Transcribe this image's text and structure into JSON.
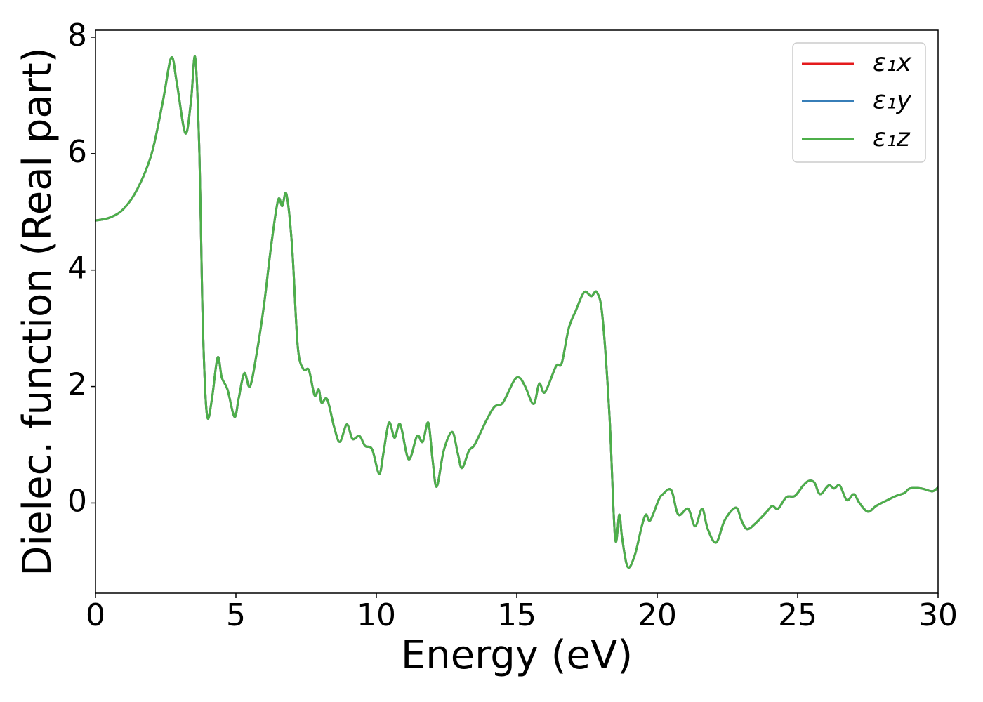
{
  "chart_data": {
    "type": "line",
    "xlabel": "Energy (eV)",
    "ylabel": "Dielec. function (Real part)",
    "x": [
      0,
      0.5,
      1.0,
      1.5,
      2.0,
      2.4,
      2.7,
      2.9,
      3.2,
      3.4,
      3.55,
      3.7,
      3.8,
      3.9,
      4.0,
      4.15,
      4.35,
      4.5,
      4.7,
      4.95,
      5.1,
      5.3,
      5.5,
      5.75,
      6.0,
      6.25,
      6.5,
      6.65,
      6.8,
      7.0,
      7.2,
      7.4,
      7.6,
      7.8,
      7.95,
      8.05,
      8.25,
      8.5,
      8.7,
      8.95,
      9.15,
      9.4,
      9.6,
      9.85,
      10.1,
      10.25,
      10.45,
      10.65,
      10.85,
      11.15,
      11.45,
      11.65,
      11.85,
      12.0,
      12.15,
      12.4,
      12.7,
      12.9,
      13.05,
      13.3,
      13.5,
      13.9,
      14.2,
      14.5,
      14.9,
      15.1,
      15.3,
      15.6,
      15.8,
      16.0,
      16.4,
      16.6,
      16.85,
      17.1,
      17.4,
      17.65,
      17.85,
      18.05,
      18.3,
      18.5,
      18.65,
      18.75,
      18.95,
      19.2,
      19.45,
      19.6,
      19.75,
      20.05,
      20.2,
      20.5,
      20.75,
      21.1,
      21.35,
      21.6,
      21.8,
      22.1,
      22.4,
      22.8,
      23.0,
      23.2,
      23.5,
      23.9,
      24.1,
      24.3,
      24.6,
      24.9,
      25.2,
      25.4,
      25.6,
      25.8,
      26.1,
      26.3,
      26.5,
      26.75,
      27.0,
      27.2,
      27.5,
      27.8,
      28.2,
      28.5,
      28.8,
      29.0,
      29.4,
      29.8,
      30.0
    ],
    "series": [
      {
        "name": "ε₁x",
        "color": "#e41a1c",
        "values": [
          4.85,
          4.9,
          5.05,
          5.4,
          6.0,
          6.9,
          7.65,
          7.2,
          6.35,
          6.9,
          7.65,
          6.0,
          3.5,
          2.0,
          1.45,
          1.8,
          2.5,
          2.15,
          1.95,
          1.48,
          1.8,
          2.23,
          2.0,
          2.6,
          3.4,
          4.4,
          5.2,
          5.1,
          5.3,
          4.4,
          2.7,
          2.3,
          2.28,
          1.85,
          1.95,
          1.72,
          1.78,
          1.3,
          1.05,
          1.35,
          1.1,
          1.15,
          0.98,
          0.92,
          0.5,
          0.85,
          1.38,
          1.12,
          1.35,
          0.75,
          1.15,
          1.05,
          1.38,
          0.75,
          0.28,
          0.9,
          1.22,
          0.85,
          0.6,
          0.9,
          1.0,
          1.4,
          1.65,
          1.72,
          2.1,
          2.15,
          2.0,
          1.7,
          2.05,
          1.9,
          2.35,
          2.4,
          3.0,
          3.3,
          3.62,
          3.55,
          3.62,
          3.2,
          1.5,
          -0.6,
          -0.2,
          -0.6,
          -1.1,
          -0.9,
          -0.4,
          -0.2,
          -0.3,
          0.05,
          0.15,
          0.22,
          -0.2,
          -0.1,
          -0.4,
          -0.1,
          -0.45,
          -0.68,
          -0.3,
          -0.08,
          -0.3,
          -0.45,
          -0.35,
          -0.15,
          -0.05,
          -0.1,
          0.1,
          0.12,
          0.3,
          0.38,
          0.35,
          0.15,
          0.3,
          0.25,
          0.3,
          0.05,
          0.15,
          0.0,
          -0.15,
          -0.05,
          0.05,
          0.12,
          0.17,
          0.25,
          0.25,
          0.2,
          0.27
        ]
      },
      {
        "name": "ε₁y",
        "color": "#377eb8",
        "values": [
          4.85,
          4.9,
          5.05,
          5.4,
          6.0,
          6.9,
          7.65,
          7.2,
          6.35,
          6.9,
          7.65,
          6.0,
          3.5,
          2.0,
          1.45,
          1.8,
          2.5,
          2.15,
          1.95,
          1.48,
          1.8,
          2.23,
          2.0,
          2.6,
          3.4,
          4.4,
          5.2,
          5.1,
          5.3,
          4.4,
          2.7,
          2.3,
          2.28,
          1.85,
          1.95,
          1.72,
          1.78,
          1.3,
          1.05,
          1.35,
          1.1,
          1.15,
          0.98,
          0.92,
          0.5,
          0.85,
          1.38,
          1.12,
          1.35,
          0.75,
          1.15,
          1.05,
          1.38,
          0.75,
          0.28,
          0.9,
          1.22,
          0.85,
          0.6,
          0.9,
          1.0,
          1.4,
          1.65,
          1.72,
          2.1,
          2.15,
          2.0,
          1.7,
          2.05,
          1.9,
          2.35,
          2.4,
          3.0,
          3.3,
          3.62,
          3.55,
          3.62,
          3.2,
          1.5,
          -0.6,
          -0.2,
          -0.6,
          -1.1,
          -0.9,
          -0.4,
          -0.2,
          -0.3,
          0.05,
          0.15,
          0.22,
          -0.2,
          -0.1,
          -0.4,
          -0.1,
          -0.45,
          -0.68,
          -0.3,
          -0.08,
          -0.3,
          -0.45,
          -0.35,
          -0.15,
          -0.05,
          -0.1,
          0.1,
          0.12,
          0.3,
          0.38,
          0.35,
          0.15,
          0.3,
          0.25,
          0.3,
          0.05,
          0.15,
          0.0,
          -0.15,
          -0.05,
          0.05,
          0.12,
          0.17,
          0.25,
          0.25,
          0.2,
          0.27
        ]
      },
      {
        "name": "ε₁z",
        "color": "#4daf4a",
        "values": [
          4.85,
          4.9,
          5.05,
          5.4,
          6.0,
          6.9,
          7.65,
          7.2,
          6.35,
          6.9,
          7.65,
          6.0,
          3.5,
          2.0,
          1.45,
          1.8,
          2.5,
          2.15,
          1.95,
          1.48,
          1.8,
          2.23,
          2.0,
          2.6,
          3.4,
          4.4,
          5.2,
          5.1,
          5.3,
          4.4,
          2.7,
          2.3,
          2.28,
          1.85,
          1.95,
          1.72,
          1.78,
          1.3,
          1.05,
          1.35,
          1.1,
          1.15,
          0.98,
          0.92,
          0.5,
          0.85,
          1.38,
          1.12,
          1.35,
          0.75,
          1.15,
          1.05,
          1.38,
          0.75,
          0.28,
          0.9,
          1.22,
          0.85,
          0.6,
          0.9,
          1.0,
          1.4,
          1.65,
          1.72,
          2.1,
          2.15,
          2.0,
          1.7,
          2.05,
          1.9,
          2.35,
          2.4,
          3.0,
          3.3,
          3.62,
          3.55,
          3.62,
          3.2,
          1.5,
          -0.6,
          -0.2,
          -0.6,
          -1.1,
          -0.9,
          -0.4,
          -0.2,
          -0.3,
          0.05,
          0.15,
          0.22,
          -0.2,
          -0.1,
          -0.4,
          -0.1,
          -0.45,
          -0.68,
          -0.3,
          -0.08,
          -0.3,
          -0.45,
          -0.35,
          -0.15,
          -0.05,
          -0.1,
          0.1,
          0.12,
          0.3,
          0.38,
          0.35,
          0.15,
          0.3,
          0.25,
          0.3,
          0.05,
          0.15,
          0.0,
          -0.15,
          -0.05,
          0.05,
          0.12,
          0.17,
          0.25,
          0.25,
          0.2,
          0.27
        ]
      }
    ],
    "xlim": [
      0,
      30
    ],
    "xticks": [
      0,
      5,
      10,
      15,
      20,
      25,
      30
    ],
    "ylim": [
      -1.55,
      8.12
    ],
    "yticks": [
      0,
      2,
      4,
      6,
      8
    ],
    "grid": false,
    "legend": "upper right"
  }
}
